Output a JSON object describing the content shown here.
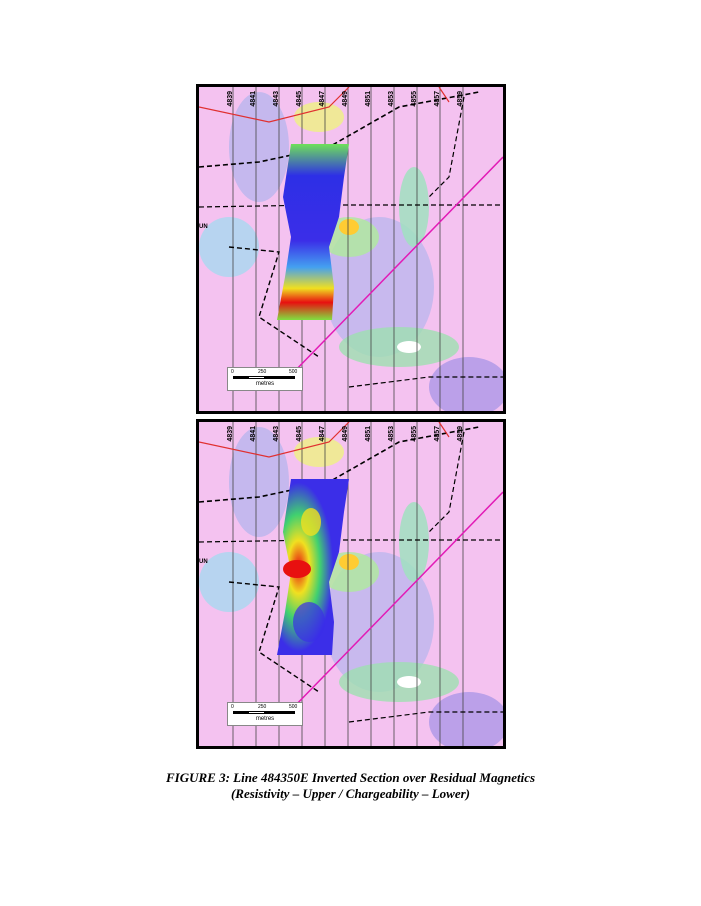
{
  "maps": [
    {
      "panel": "Resistivity",
      "line_labels": [
        "4839",
        "4841",
        "4843",
        "4845",
        "4847",
        "4849",
        "4851",
        "4853",
        "4855",
        "4857",
        "4859"
      ],
      "side_label": "UN",
      "scale": {
        "ticks": [
          "0",
          "250",
          "500"
        ],
        "unit": "metres"
      }
    },
    {
      "panel": "Chargeability",
      "line_labels": [
        "4839",
        "4841",
        "4843",
        "4845",
        "4847",
        "4849",
        "4851",
        "4853",
        "4855",
        "4857",
        "4859"
      ],
      "side_label": "UN",
      "scale": {
        "ticks": [
          "0",
          "250",
          "500"
        ],
        "unit": "metres"
      }
    }
  ],
  "caption": {
    "line1": "FIGURE 3: Line 484350E Inverted Section over Residual Magnetics",
    "line2": "(Resistivity – Upper / Chargeability – Lower)"
  },
  "colors": {
    "magnetic_low": "#f2a6ee",
    "magnetic_mid": "#a8c8ee",
    "magnetic_high": "#ffcc33",
    "section_low": "#3b2ee8",
    "section_high": "#e80e0e",
    "fault_line": "#e21bb6",
    "road": "#e03030"
  }
}
